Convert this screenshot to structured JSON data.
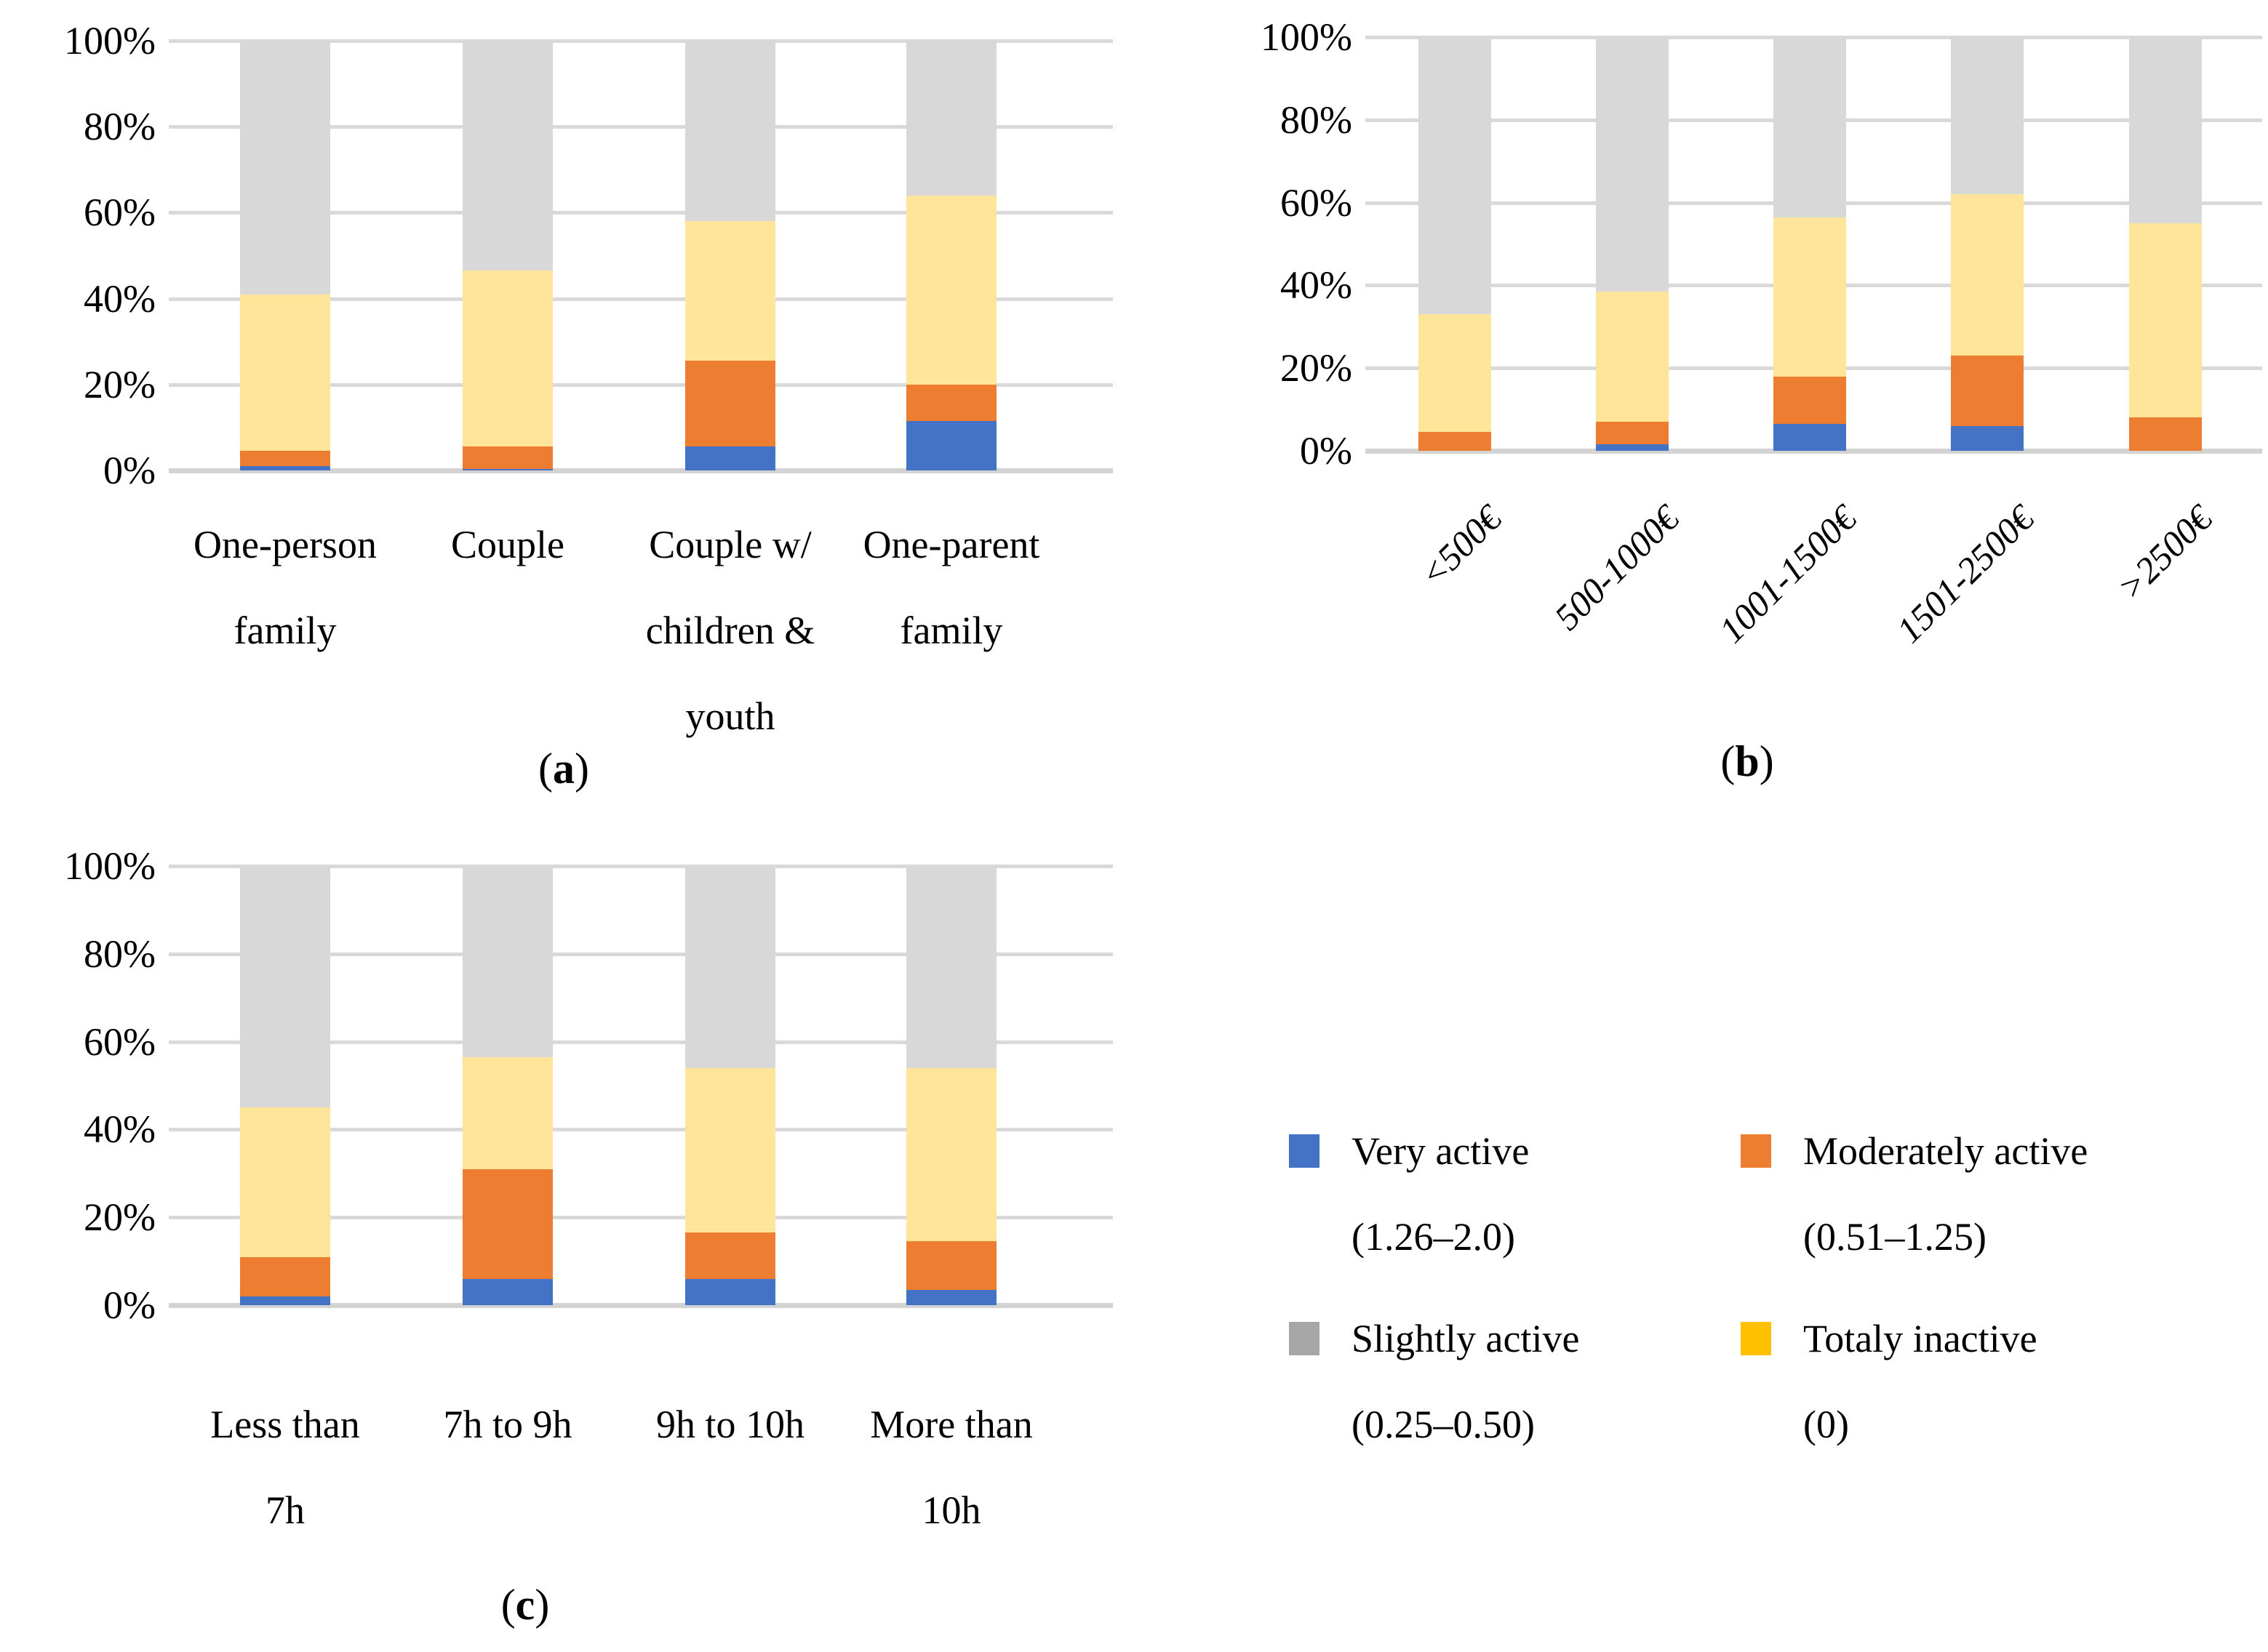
{
  "figure": {
    "background": "#ffffff",
    "grid_color": "#d9d9d9",
    "text_color": "#000000"
  },
  "legend": {
    "entries": [
      {
        "label": "Very active",
        "range": "(1.26–2.0)",
        "swatch": "#4472C4"
      },
      {
        "label": "Moderately active",
        "range": "(0.51–1.25)",
        "swatch": "#ED7D31"
      },
      {
        "label": "Slightly active",
        "range": "(0.25–0.50)",
        "swatch": "#A6A6A6"
      },
      {
        "label": "Totaly inactive",
        "range": "(0)",
        "swatch": "#FFC000"
      }
    ]
  },
  "chart_data": [
    {
      "type": "bar",
      "stacked": true,
      "caption_letter": "a",
      "categories": [
        "One-person family",
        "Couple",
        "Couple w/ children & youth",
        "One-parent family"
      ],
      "category_lines": [
        [
          "One-person",
          "family"
        ],
        [
          "Couple"
        ],
        [
          "Couple w/",
          "children &",
          "youth"
        ],
        [
          "One-parent",
          "family"
        ]
      ],
      "ylim": [
        0,
        100
      ],
      "yticks": [
        "0%",
        "20%",
        "40%",
        "60%",
        "80%",
        "100%"
      ],
      "grid": true,
      "series": [
        {
          "name": "Very active (1.26–2.0)",
          "color": "#4472C4",
          "values": [
            1,
            0.3,
            5.5,
            11.5
          ]
        },
        {
          "name": "Moderately active (0.51–1.25)",
          "color": "#ED7D31",
          "values": [
            3.5,
            5.2,
            20,
            8.5
          ]
        },
        {
          "name": "Totaly inactive (0)",
          "color": "#FFE599",
          "values": [
            36.5,
            41,
            32.5,
            44
          ]
        },
        {
          "name": "Slightly active (0.25–0.50)",
          "color": "#D8D8D8",
          "values": [
            59,
            53.5,
            42,
            36
          ]
        }
      ]
    },
    {
      "type": "bar",
      "stacked": true,
      "caption_letter": "b",
      "categories": [
        "<500€",
        "500-1000€",
        "1001-1500€",
        "1501-2500€",
        ">2500€"
      ],
      "category_lines": [
        [
          "<500€"
        ],
        [
          "500-1000€"
        ],
        [
          "1001-1500€"
        ],
        [
          "1501-2500€"
        ],
        [
          ">2500€"
        ]
      ],
      "ylim": [
        0,
        100
      ],
      "yticks": [
        "0%",
        "20%",
        "40%",
        "60%",
        "80%",
        "100%"
      ],
      "grid": true,
      "series": [
        {
          "name": "Very active (1.26–2.0)",
          "color": "#4472C4",
          "values": [
            0,
            1.5,
            6.5,
            6,
            0
          ]
        },
        {
          "name": "Moderately active (0.51–1.25)",
          "color": "#ED7D31",
          "values": [
            4.5,
            5.5,
            11.5,
            17,
            8
          ]
        },
        {
          "name": "Totaly inactive (0)",
          "color": "#FFE599",
          "values": [
            28.5,
            31.5,
            38.5,
            39,
            47
          ]
        },
        {
          "name": "Slightly active (0.25–0.50)",
          "color": "#D8D8D8",
          "values": [
            67,
            61.5,
            43.5,
            38,
            45
          ]
        }
      ]
    },
    {
      "type": "bar",
      "stacked": true,
      "caption_letter": "c",
      "categories": [
        "Less than 7h",
        "7h to 9h",
        "9h to 10h",
        "More than 10h"
      ],
      "category_lines": [
        [
          "Less than",
          "7h"
        ],
        [
          "7h to 9h"
        ],
        [
          "9h to 10h"
        ],
        [
          "More than",
          "10h"
        ]
      ],
      "ylim": [
        0,
        100
      ],
      "yticks": [
        "0%",
        "20%",
        "40%",
        "60%",
        "80%",
        "100%"
      ],
      "grid": true,
      "series": [
        {
          "name": "Very active (1.26–2.0)",
          "color": "#4472C4",
          "values": [
            2,
            6,
            6,
            3.5
          ]
        },
        {
          "name": "Moderately active (0.51–1.25)",
          "color": "#ED7D31",
          "values": [
            9,
            25,
            10.5,
            11
          ]
        },
        {
          "name": "Totaly inactive (0)",
          "color": "#FFE599",
          "values": [
            34,
            25.5,
            37.5,
            39.5
          ]
        },
        {
          "name": "Slightly active (0.25–0.50)",
          "color": "#D8D8D8",
          "values": [
            55,
            43.5,
            46,
            46
          ]
        }
      ]
    }
  ]
}
